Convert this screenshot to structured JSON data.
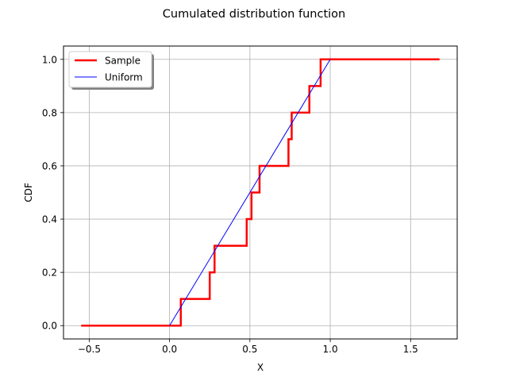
{
  "chart_data": {
    "type": "line",
    "title": "Cumulated distribution function",
    "xlabel": "X",
    "ylabel": "CDF",
    "xlim": [
      -0.66,
      1.79
    ],
    "ylim": [
      -0.05,
      1.05
    ],
    "xticks": [
      -0.5,
      0.0,
      0.5,
      1.0,
      1.5
    ],
    "xtick_labels": [
      "−0.5",
      "0.0",
      "0.5",
      "1.0",
      "1.5"
    ],
    "yticks": [
      0.0,
      0.2,
      0.4,
      0.6,
      0.8,
      1.0
    ],
    "ytick_labels": [
      "0.0",
      "0.2",
      "0.4",
      "0.6",
      "0.8",
      "1.0"
    ],
    "grid": true,
    "legend_position": "top-left",
    "series": [
      {
        "name": "Sample",
        "color": "#ff0000",
        "style": "step",
        "x": [
          -0.55,
          0.07,
          0.07,
          0.25,
          0.25,
          0.28,
          0.28,
          0.48,
          0.48,
          0.51,
          0.51,
          0.56,
          0.56,
          0.74,
          0.74,
          0.76,
          0.76,
          0.87,
          0.87,
          0.94,
          0.94,
          1.68
        ],
        "y": [
          0.0,
          0.0,
          0.1,
          0.1,
          0.2,
          0.2,
          0.3,
          0.3,
          0.4,
          0.4,
          0.5,
          0.5,
          0.6,
          0.6,
          0.7,
          0.7,
          0.8,
          0.8,
          0.9,
          0.9,
          1.0,
          1.0
        ]
      },
      {
        "name": "Uniform",
        "color": "#0000ff",
        "style": "line",
        "x": [
          0.0,
          1.0
        ],
        "y": [
          0.0,
          1.0
        ]
      }
    ]
  }
}
